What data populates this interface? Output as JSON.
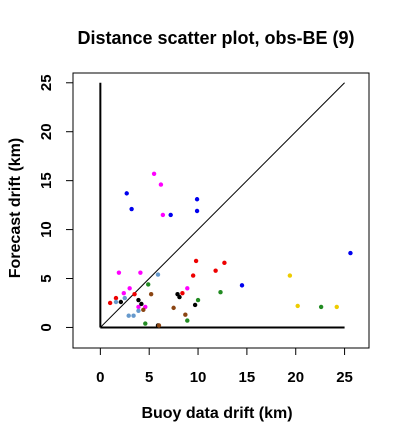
{
  "chart_data": {
    "type": "scatter",
    "title": "Distance scatter plot, obs-BE (9)",
    "xlabel": "Buoy data drift (km)",
    "ylabel": "Forecast drift (km)",
    "xlim": [
      -2.8,
      27.5
    ],
    "ylim": [
      -2.1,
      26.0
    ],
    "xticks": [
      0,
      5,
      10,
      15,
      20,
      25
    ],
    "yticks": [
      0,
      5,
      10,
      15,
      20,
      25
    ],
    "grid": false,
    "reference_lines": [
      {
        "type": "identity",
        "from": [
          0,
          0
        ],
        "to": [
          25,
          25
        ],
        "color": "#000000",
        "width": 1
      },
      {
        "type": "axis-x",
        "from": [
          0,
          0
        ],
        "to": [
          25,
          0
        ],
        "color": "#000000",
        "width": 2
      },
      {
        "type": "axis-y",
        "from": [
          0,
          0
        ],
        "to": [
          0,
          25
        ],
        "color": "#000000",
        "width": 2
      }
    ],
    "series": [
      {
        "color": "#0000ee",
        "points": [
          [
            2.7,
            13.7
          ],
          [
            3.2,
            12.1
          ],
          [
            7.2,
            11.5
          ],
          [
            9.9,
            11.9
          ],
          [
            9.9,
            13.1
          ],
          [
            14.5,
            4.3
          ],
          [
            25.6,
            7.6
          ]
        ]
      },
      {
        "color": "#ff00ff",
        "points": [
          [
            5.5,
            15.7
          ],
          [
            6.2,
            14.6
          ],
          [
            6.4,
            11.5
          ],
          [
            1.9,
            5.6
          ],
          [
            4.1,
            5.6
          ],
          [
            3.0,
            4.0
          ],
          [
            8.9,
            4.0
          ],
          [
            2.4,
            3.5
          ],
          [
            3.9,
            2.1
          ],
          [
            4.6,
            2.1
          ]
        ]
      },
      {
        "color": "#ee0000",
        "points": [
          [
            1.0,
            2.5
          ],
          [
            9.8,
            6.8
          ],
          [
            12.7,
            6.6
          ],
          [
            11.8,
            5.8
          ],
          [
            9.5,
            5.3
          ],
          [
            3.5,
            3.4
          ],
          [
            1.6,
            3.0
          ],
          [
            8.4,
            3.5
          ]
        ]
      },
      {
        "color": "#6699cc",
        "points": [
          [
            5.9,
            5.4
          ],
          [
            2.9,
            1.2
          ],
          [
            3.4,
            1.2
          ],
          [
            3.9,
            1.7
          ],
          [
            2.5,
            3.0
          ],
          [
            1.6,
            2.6
          ]
        ]
      },
      {
        "color": "#000000",
        "points": [
          [
            2.1,
            2.6
          ],
          [
            3.9,
            2.8
          ],
          [
            4.2,
            2.4
          ],
          [
            7.9,
            3.4
          ],
          [
            8.1,
            3.1
          ],
          [
            9.7,
            2.3
          ],
          [
            5.9,
            0.2
          ]
        ]
      },
      {
        "color": "#228b22",
        "points": [
          [
            4.9,
            4.4
          ],
          [
            12.3,
            3.6
          ],
          [
            10.0,
            2.8
          ],
          [
            4.6,
            0.4
          ],
          [
            22.6,
            2.1
          ],
          [
            8.9,
            0.7
          ]
        ]
      },
      {
        "color": "#8b4513",
        "points": [
          [
            5.2,
            3.4
          ],
          [
            7.5,
            2.0
          ],
          [
            8.7,
            1.3
          ],
          [
            6.0,
            0.2
          ],
          [
            4.4,
            1.8
          ]
        ]
      },
      {
        "color": "#eecc00",
        "points": [
          [
            19.4,
            5.3
          ],
          [
            20.2,
            2.2
          ],
          [
            24.2,
            2.1
          ]
        ]
      }
    ]
  }
}
